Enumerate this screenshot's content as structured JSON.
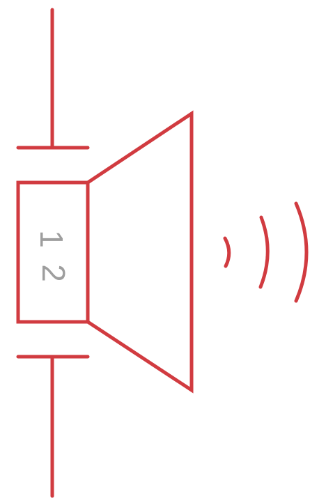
{
  "symbol": {
    "type": "speaker",
    "stroke_color": "#d13b40",
    "label_color": "#9e9e9e",
    "pin_labels": [
      "1",
      "2"
    ]
  }
}
